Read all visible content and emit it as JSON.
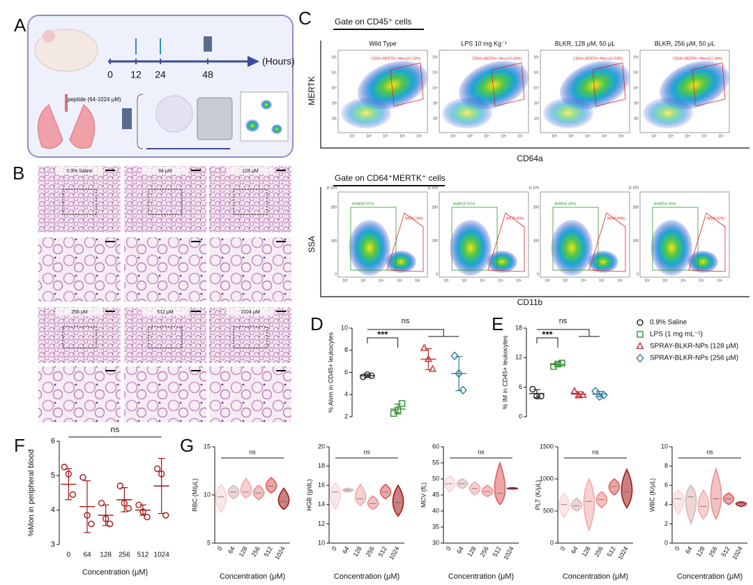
{
  "panel_labels": [
    "A",
    "B",
    "C",
    "D",
    "E",
    "F",
    "G"
  ],
  "panel_a": {
    "timeline": [
      "0",
      "12",
      "24",
      "48"
    ],
    "unit": "(Hours)",
    "peptide": "peptide (64-1024 μM)"
  },
  "panel_b": {
    "labels": [
      "0.9% Saline",
      "64 μM",
      "128 μM",
      "256 μM",
      "512 μM",
      "1024 μM"
    ]
  },
  "panel_c": {
    "gate1": "Gate on CD45⁺ cells",
    "titles": [
      "Wild Type",
      "LPS 10 mg Kg⁻¹",
      "BLKR, 128 μM, 50 μL",
      "BLKR, 256 μM, 50 μL"
    ],
    "gate1_labels": [
      "CD64+,MERTK+ Macs(12.16%)",
      "CD64+,MERTK+ Macs(13.66%)",
      "CD64+,MERTK+ Macs(10.53%)",
      "CD64+,MERTK+ Macs(12.34%)"
    ],
    "ylabel1": "MERTK",
    "xlabel1": "CD64a",
    "gate2": "Gate on CD64⁺MERTK⁺ cells",
    "alvm_labels": [
      "AlvM(60.07%)",
      "AlvM(18.51%)",
      "AlvM(56.46%)",
      "AlvM(54.16%)"
    ],
    "im_labels": [
      "IM(36.24%)",
      "IM(79.40%)",
      "IM(40.99%)",
      "IM(42.62%)"
    ],
    "ylabel2": "SSA",
    "xlabel2": "CD11b",
    "log_ticks": [
      "10²",
      "10³",
      "10⁴",
      "10⁵",
      "10⁶"
    ],
    "ssa_ticks": [
      "0",
      "100",
      "200"
    ],
    "ssa_unit": "(x 10³)"
  },
  "chart_data": [
    {
      "type": "dotplot",
      "ylabel": "% Alvm in CD45+ leukocytes",
      "ylim": [
        2,
        10
      ],
      "yticks": [
        2,
        4,
        6,
        8,
        10
      ],
      "annotations": [
        "***",
        "ns"
      ],
      "groups": [
        {
          "marker": "circle",
          "color": "#222222",
          "points": [
            5.6,
            5.8,
            5.7
          ],
          "mean": 5.7,
          "sd": 0.15
        },
        {
          "marker": "square",
          "color": "#2e8b2e",
          "points": [
            2.3,
            2.6,
            3.2
          ],
          "mean": 2.7,
          "sd": 0.45
        },
        {
          "marker": "triangle",
          "color": "#c62828",
          "points": [
            8.2,
            7.2,
            6.3
          ],
          "mean": 7.2,
          "sd": 0.95
        },
        {
          "marker": "diamond",
          "color": "#2a7a9a",
          "points": [
            7.5,
            5.9,
            4.4
          ],
          "mean": 5.9,
          "sd": 1.55
        }
      ]
    },
    {
      "type": "dotplot",
      "ylabel": "% IM in CD45+ leukocytes",
      "ylim": [
        0,
        18
      ],
      "yticks": [
        0,
        6,
        12,
        18
      ],
      "annotations": [
        "***",
        "ns"
      ],
      "legend": true,
      "groups": [
        {
          "name": "0.9% Saline",
          "marker": "circle",
          "color": "#222222",
          "points": [
            5.6,
            4.2,
            4.2
          ],
          "mean": 4.7,
          "sd": 0.8
        },
        {
          "name": "LPS (1 mg mL⁻¹)",
          "marker": "square",
          "color": "#2e8b2e",
          "points": [
            10.2,
            10.7,
            10.9
          ],
          "mean": 10.6,
          "sd": 0.4
        },
        {
          "name": "SPRAY-BLKR-NPs (128 μM)",
          "marker": "triangle",
          "color": "#c62828",
          "points": [
            5.2,
            4.3,
            4.4
          ],
          "mean": 4.6,
          "sd": 0.5
        },
        {
          "name": "SPRAY-BLKR-NPs (256 μM)",
          "marker": "diamond",
          "color": "#2a7a9a",
          "points": [
            5.2,
            4.1,
            4.4
          ],
          "mean": 4.6,
          "sd": 0.55
        }
      ]
    },
    {
      "type": "dotplot",
      "ylabel": "%Mon in peripheral blood",
      "xlabel": "Concentration (μM)",
      "ylim": [
        3,
        6
      ],
      "yticks": [
        3,
        4,
        5,
        6
      ],
      "annotations": [
        "ns"
      ],
      "categories": [
        "0",
        "64",
        "128",
        "256",
        "512",
        "1024"
      ],
      "groups": [
        {
          "marker": "circle",
          "color": "#a31515",
          "points": [
            5.25,
            5.05,
            4.45
          ],
          "mean": 4.75,
          "sd": 0.45
        },
        {
          "marker": "circle",
          "color": "#a31515",
          "points": [
            4.95,
            3.85,
            3.6
          ],
          "mean": 4.1,
          "sd": 0.75
        },
        {
          "marker": "circle",
          "color": "#a31515",
          "points": [
            4.2,
            3.75,
            3.6
          ],
          "mean": 3.85,
          "sd": 0.3
        },
        {
          "marker": "circle",
          "color": "#a31515",
          "points": [
            4.7,
            4.2,
            4.05
          ],
          "mean": 4.3,
          "sd": 0.35
        },
        {
          "marker": "circle",
          "color": "#a31515",
          "points": [
            4.15,
            3.95,
            3.8
          ],
          "mean": 4.0,
          "sd": 0.15
        },
        {
          "marker": "circle",
          "color": "#a31515",
          "points": [
            5.2,
            5.05,
            3.85
          ],
          "mean": 4.7,
          "sd": 0.8
        }
      ]
    },
    {
      "type": "violin",
      "ylabel": "RBC (M/μL)",
      "xlabel": "Concentration (μM)",
      "annotations": [
        "ns"
      ],
      "ylim": [
        5,
        15
      ],
      "yticks": [
        5,
        10,
        15
      ],
      "categories": [
        "0",
        "64",
        "128",
        "256",
        "512",
        "1024"
      ],
      "values": [
        9.8,
        10.3,
        10.3,
        10.2,
        10.9,
        9.3
      ],
      "mins": [
        8.2,
        9.6,
        9.7,
        9.5,
        10.2,
        8.5
      ],
      "maxs": [
        11.1,
        11.0,
        11.7,
        11.0,
        11.8,
        10.7
      ],
      "colors": [
        "#f7d4d4",
        "#dcb5b5",
        "#f2a9a9",
        "#e98e8e",
        "#dc5c5c",
        "#a01818"
      ]
    },
    {
      "type": "violin",
      "ylabel": "HGB (g/dL)",
      "xlabel": "Concentration (μM)",
      "annotations": [
        "ns"
      ],
      "ylim": [
        10,
        20
      ],
      "yticks": [
        10,
        12,
        14,
        16,
        18,
        20
      ],
      "categories": [
        "0",
        "64",
        "128",
        "256",
        "512",
        "1024"
      ],
      "values": [
        15.3,
        15.5,
        14.6,
        14.1,
        15.3,
        14.2
      ],
      "mins": [
        13.5,
        15.3,
        13.9,
        13.5,
        14.6,
        12.8
      ],
      "maxs": [
        16.2,
        15.7,
        16.1,
        14.9,
        16.1,
        16.0
      ],
      "colors": [
        "#f7d4d4",
        "#dcb5b5",
        "#f2a9a9",
        "#e98e8e",
        "#dc5c5c",
        "#a01818"
      ]
    },
    {
      "type": "violin",
      "ylabel": "MCV (fL)",
      "xlabel": "Concentration (μM)",
      "annotations": [
        "ns"
      ],
      "ylim": [
        30,
        60
      ],
      "yticks": [
        30,
        35,
        40,
        45,
        50,
        55,
        60
      ],
      "categories": [
        "0",
        "64",
        "128",
        "256",
        "512",
        "1024"
      ],
      "values": [
        48.5,
        48.5,
        47,
        46,
        45.5,
        47
      ],
      "mins": [
        46,
        47,
        45,
        44.5,
        42,
        46.8
      ],
      "maxs": [
        51,
        50,
        49,
        48,
        55,
        47.3
      ],
      "colors": [
        "#f7d4d4",
        "#dcb5b5",
        "#f2a9a9",
        "#e98e8e",
        "#dc5c5c",
        "#a01818"
      ]
    },
    {
      "type": "violin",
      "ylabel": "PLT (K/μL)",
      "xlabel": "Concentration (μM)",
      "annotations": [
        "ns"
      ],
      "ylim": [
        0,
        1500
      ],
      "yticks": [
        0,
        500,
        1000,
        1500
      ],
      "categories": [
        "0",
        "64",
        "128",
        "256",
        "512",
        "1024"
      ],
      "values": [
        600,
        580,
        650,
        680,
        880,
        800
      ],
      "mins": [
        400,
        500,
        200,
        550,
        750,
        550
      ],
      "maxs": [
        780,
        700,
        1000,
        800,
        1000,
        1150
      ],
      "colors": [
        "#f7d4d4",
        "#dcb5b5",
        "#f2a9a9",
        "#e98e8e",
        "#dc5c5c",
        "#a01818"
      ]
    },
    {
      "type": "violin",
      "ylabel": "WBC (K/μL)",
      "xlabel": "Concentration (μM)",
      "annotations": [
        "ns"
      ],
      "ylim": [
        0,
        10
      ],
      "yticks": [
        0,
        2,
        4,
        6,
        8,
        10
      ],
      "categories": [
        "0",
        "64",
        "128",
        "256",
        "512",
        "1024"
      ],
      "values": [
        4.6,
        4.8,
        3.8,
        4.6,
        4.6,
        4.1
      ],
      "mins": [
        3,
        2,
        2.5,
        2.5,
        4,
        3.8
      ],
      "maxs": [
        5.5,
        6,
        5.5,
        7.7,
        5.2,
        4.3
      ],
      "colors": [
        "#f7d4d4",
        "#dcb5b5",
        "#f2a9a9",
        "#e98e8e",
        "#dc5c5c",
        "#a01818"
      ]
    }
  ]
}
